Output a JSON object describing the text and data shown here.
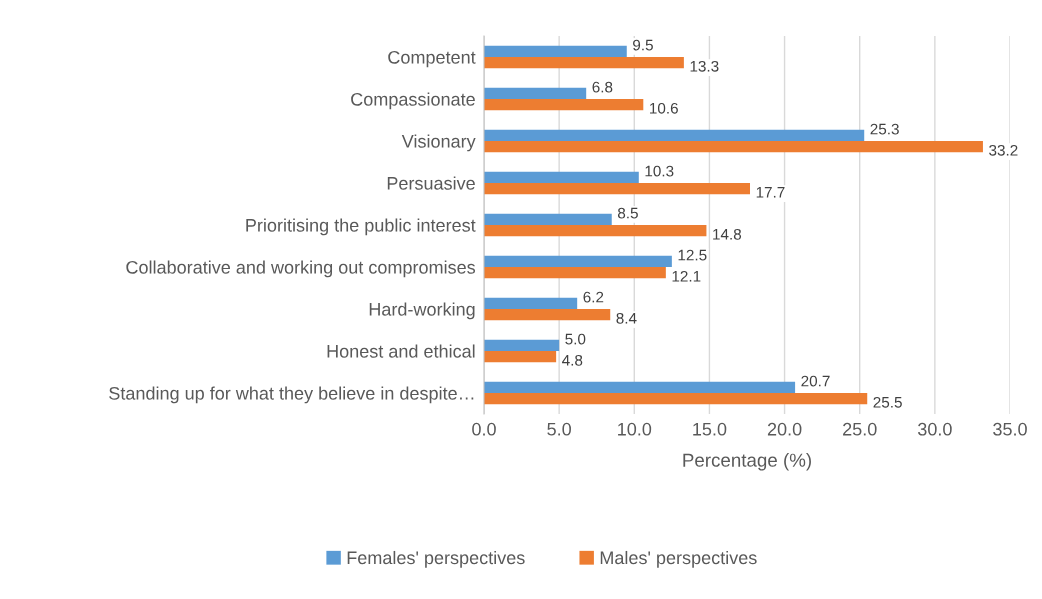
{
  "chart_data": {
    "type": "bar",
    "orientation": "horizontal",
    "categories": [
      "Competent",
      "Compassionate",
      "Visionary",
      "Persuasive",
      "Prioritising the public interest",
      "Collaborative and working out compromises",
      "Hard-working",
      "Honest and ethical",
      "Standing up for what they believe in despite…"
    ],
    "series": [
      {
        "name": "Females' perspectives",
        "color": "#5b9bd5",
        "values": [
          9.5,
          6.8,
          25.3,
          10.3,
          8.5,
          12.5,
          6.2,
          5.0,
          20.7
        ],
        "value_labels": [
          "9.5",
          "6.8",
          "25.3",
          "10.3",
          "8.5",
          "12.5",
          "6.2",
          "5.0",
          "20.7"
        ]
      },
      {
        "name": "Males' perspectives",
        "color": "#ed7d31",
        "values": [
          13.3,
          10.6,
          33.2,
          17.7,
          14.8,
          12.1,
          8.4,
          4.8,
          25.5
        ],
        "value_labels": [
          "13.3",
          "10.6",
          "33.2",
          "17.7",
          "14.8",
          "12.1",
          "8.4",
          "4.8",
          "25.5"
        ]
      }
    ],
    "xlabel": "Percentage (%)",
    "xlim": [
      0,
      35
    ],
    "xticks": [
      {
        "value": 0,
        "label": "0.0"
      },
      {
        "value": 5,
        "label": "5.0"
      },
      {
        "value": 10,
        "label": "10.0"
      },
      {
        "value": 15,
        "label": "15.0"
      },
      {
        "value": 20,
        "label": "20.0"
      },
      {
        "value": 25,
        "label": "25.0"
      },
      {
        "value": 30,
        "label": "30.0"
      },
      {
        "value": 35,
        "label": "35.0"
      }
    ],
    "grid": "x",
    "legend": "bottom"
  }
}
